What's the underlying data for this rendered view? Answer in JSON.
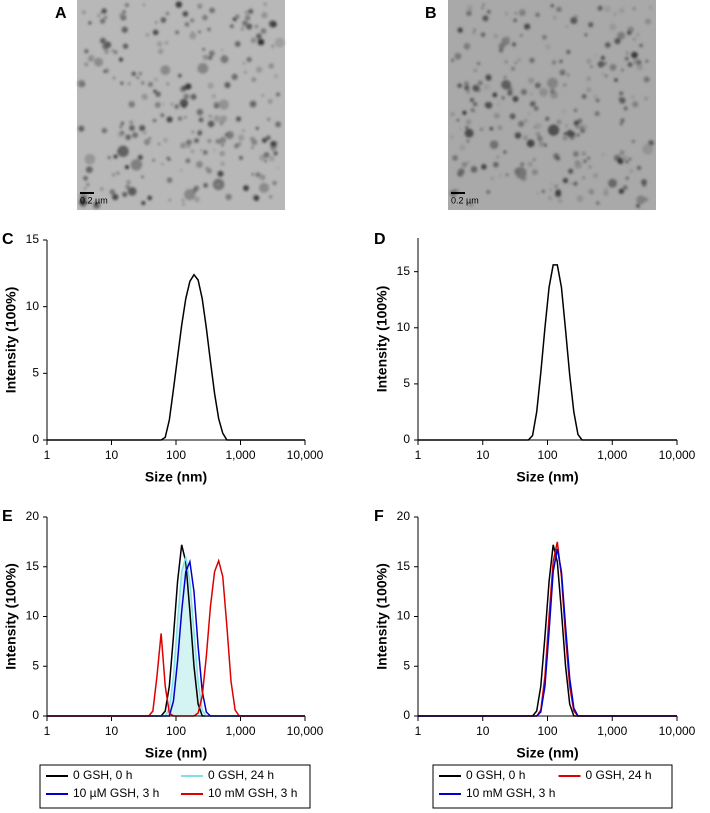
{
  "images": [
    {
      "label": "A",
      "scale_bar": "0.2 µm"
    },
    {
      "label": "B",
      "scale_bar": "0.2 µm"
    }
  ],
  "chart_data": [
    {
      "type": "line",
      "label": "C",
      "xlabel": "Size (nm)",
      "ylabel": "Intensity (100%)",
      "xscale": "log",
      "xlim": [
        1,
        10000
      ],
      "xticks": [
        1,
        10,
        100,
        {
          "value": 1000,
          "label": "1,000"
        },
        {
          "value": 10000,
          "label": "10,000"
        }
      ],
      "ylim": [
        0,
        15
      ],
      "yticks": [
        0,
        5,
        10,
        15
      ],
      "x": [
        1,
        50.7,
        58.8,
        68.1,
        78.8,
        91.3,
        105.7,
        122.4,
        141.8,
        164.2,
        190.1,
        220.2,
        255.0,
        295.3,
        342.0,
        396.1,
        458.7,
        531.2,
        615.1,
        712.4,
        10000
      ],
      "series": [
        {
          "color": "#000000",
          "values": [
            0,
            0,
            0,
            0.2,
            1.5,
            3.8,
            6.2,
            8.6,
            10.6,
            11.9,
            12.4,
            12,
            10.6,
            8.4,
            5.9,
            3.5,
            1.6,
            0.5,
            0,
            0,
            0
          ]
        }
      ]
    },
    {
      "type": "line",
      "label": "D",
      "xlabel": "Size (nm)",
      "ylabel": "Intensity (100%)",
      "xscale": "log",
      "xlim": [
        1,
        10000
      ],
      "xticks": [
        1,
        10,
        100,
        {
          "value": 1000,
          "label": "1,000"
        },
        {
          "value": 10000,
          "label": "10,000"
        }
      ],
      "ylim": [
        0,
        18
      ],
      "yticks": [
        0,
        5,
        10,
        15
      ],
      "x": [
        1,
        50.7,
        58.8,
        68.1,
        78.8,
        91.3,
        105.7,
        122.4,
        141.8,
        164.2,
        190.1,
        220.2,
        255.0,
        295.3,
        342.0,
        10000
      ],
      "series": [
        {
          "color": "#000000",
          "values": [
            0,
            0,
            0.4,
            2.5,
            6,
            10,
            13.6,
            15.6,
            15.6,
            13.6,
            9.8,
            5.8,
            2.5,
            0.5,
            0,
            0
          ]
        }
      ]
    },
    {
      "type": "line",
      "label": "E",
      "xlabel": "Size (nm)",
      "ylabel": "Intensity (100%)",
      "xscale": "log",
      "legend": "bottom",
      "xlim": [
        1,
        10000
      ],
      "xticks": [
        1,
        10,
        100,
        {
          "value": 1000,
          "label": "1,000"
        },
        {
          "value": 10000,
          "label": "10,000"
        }
      ],
      "ylim": [
        0,
        20
      ],
      "yticks": [
        0,
        5,
        10,
        15,
        20
      ],
      "x": [
        1,
        37.8,
        43.8,
        50.7,
        58.8,
        68.1,
        78.8,
        91.3,
        105.7,
        122.4,
        141.8,
        164.2,
        190.1,
        220.2,
        255.0,
        295.3,
        342.0,
        396.1,
        458.7,
        531.2,
        615.1,
        712.4,
        825.0,
        955.4,
        10000
      ],
      "series": [
        {
          "name": "0 GSH, 0 h",
          "color": "#000000",
          "values": [
            0,
            0,
            0,
            0,
            0,
            0.5,
            3,
            8,
            13.5,
            17.2,
            15.5,
            10.5,
            5,
            1.2,
            0,
            0,
            0,
            0,
            0,
            0,
            0,
            0,
            0,
            0,
            0
          ]
        },
        {
          "name": "0 GSH, 24 h",
          "color": "#7fe0e6",
          "fill_color": "#d4f3f3",
          "values": [
            0,
            0,
            0,
            0,
            0,
            0,
            0.8,
            4,
            9.5,
            14.5,
            16,
            13.5,
            8.5,
            3.5,
            0.6,
            0,
            0,
            0,
            0,
            0,
            0,
            0,
            0,
            0,
            0
          ]
        },
        {
          "name": "10 µM GSH, 3 h",
          "color": "#0000cc",
          "values": [
            0,
            0,
            0,
            0,
            0,
            0,
            0,
            1.5,
            5.5,
            10.5,
            14.5,
            15.5,
            12.5,
            7,
            2.5,
            0.4,
            0,
            0,
            0,
            0,
            0,
            0,
            0,
            0,
            0
          ]
        },
        {
          "name": "10 mM GSH, 3 h",
          "color": "#dd0000",
          "values": [
            0,
            0,
            0.5,
            4,
            8.3,
            3,
            0.3,
            0,
            0,
            0,
            0,
            0,
            0,
            0.3,
            2,
            6,
            11,
            14.5,
            15.6,
            14,
            9,
            3.5,
            0.6,
            0,
            0
          ]
        }
      ]
    },
    {
      "type": "line",
      "label": "F",
      "xlabel": "Size (nm)",
      "ylabel": "Intensity (100%)",
      "xscale": "log",
      "legend": "bottom",
      "xlim": [
        1,
        10000
      ],
      "xticks": [
        1,
        10,
        100,
        {
          "value": 1000,
          "label": "1,000"
        },
        {
          "value": 10000,
          "label": "10,000"
        }
      ],
      "ylim": [
        0,
        20
      ],
      "yticks": [
        0,
        5,
        10,
        15,
        20
      ],
      "x": [
        1,
        37.8,
        43.8,
        50.7,
        58.8,
        68.1,
        78.8,
        91.3,
        105.7,
        122.4,
        141.8,
        164.2,
        190.1,
        220.2,
        255.0,
        295.3,
        342.0,
        396.1,
        458.7,
        531.2,
        615.1,
        712.4,
        825.0,
        955.4,
        10000
      ],
      "series": [
        {
          "name": "0 GSH, 0 h",
          "color": "#000000",
          "values": [
            0,
            0,
            0,
            0,
            0,
            0.5,
            3,
            8,
            13.5,
            17.2,
            15.5,
            10.5,
            5,
            1.2,
            0,
            0,
            0,
            0,
            0,
            0,
            0,
            0,
            0,
            0,
            0
          ]
        },
        {
          "name": "0 GSH, 24 h",
          "color": "#dd0000",
          "values": [
            0,
            0,
            0,
            0,
            0,
            0,
            0.6,
            4,
            10,
            15.5,
            17.5,
            14,
            8,
            3,
            0.5,
            0,
            0,
            0,
            0,
            0,
            0,
            0,
            0,
            0,
            0
          ]
        },
        {
          "name": "10 mM GSH, 3 h",
          "color": "#0000cc",
          "values": [
            0,
            0,
            0,
            0,
            0,
            0,
            0.4,
            3,
            8.5,
            14.5,
            16.8,
            14.5,
            9,
            3.8,
            0.8,
            0,
            0,
            0,
            0,
            0,
            0,
            0,
            0,
            0,
            0
          ]
        }
      ]
    }
  ]
}
